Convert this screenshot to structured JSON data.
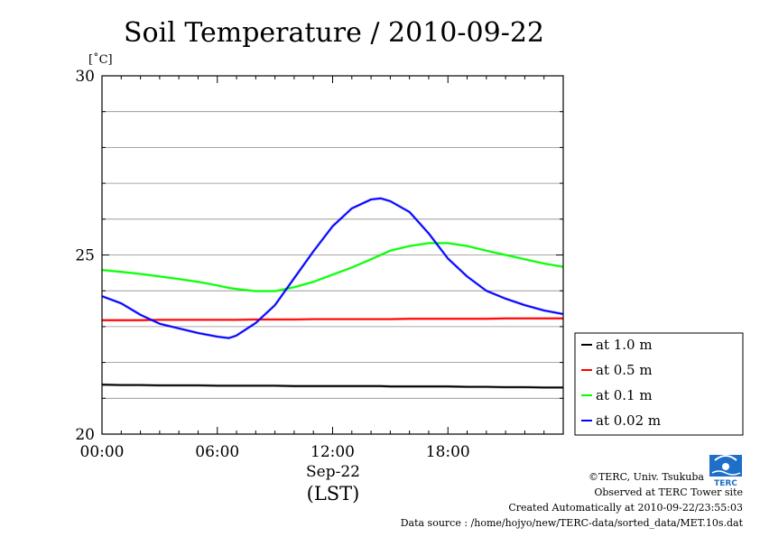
{
  "chart_data": {
    "type": "line",
    "title": "Soil Temperature / 2010-09-22",
    "ylabel": "[˚C]",
    "xlabel": "(LST)",
    "x_sublabel": "Sep-22",
    "ylim": [
      20,
      30
    ],
    "xlim": [
      0,
      24
    ],
    "y_ticks": [
      20,
      25,
      30
    ],
    "x_ticks": [
      {
        "v": 0,
        "label": "00:00"
      },
      {
        "v": 6,
        "label": "06:00"
      },
      {
        "v": 12,
        "label": "12:00"
      },
      {
        "v": 18,
        "label": "18:00"
      }
    ],
    "grid": true,
    "legend_position": "right",
    "x": [
      0,
      1,
      2,
      3,
      4,
      5,
      6,
      6.6,
      7,
      8,
      9,
      10,
      11,
      12,
      13,
      14,
      14.5,
      15,
      16,
      17,
      18,
      19,
      20,
      21,
      22,
      23,
      24
    ],
    "series": [
      {
        "name": "at 1.0 m",
        "color": "#000000",
        "values": [
          21.38,
          21.37,
          21.37,
          21.36,
          21.36,
          21.36,
          21.35,
          21.35,
          21.35,
          21.35,
          21.35,
          21.34,
          21.34,
          21.34,
          21.34,
          21.34,
          21.34,
          21.33,
          21.33,
          21.33,
          21.33,
          21.32,
          21.32,
          21.31,
          21.31,
          21.3,
          21.3
        ]
      },
      {
        "name": "at 0.5 m",
        "color": "#ff0000",
        "values": [
          23.18,
          23.18,
          23.18,
          23.19,
          23.19,
          23.19,
          23.19,
          23.19,
          23.19,
          23.2,
          23.2,
          23.2,
          23.21,
          23.21,
          23.21,
          23.21,
          23.21,
          23.21,
          23.22,
          23.22,
          23.22,
          23.22,
          23.22,
          23.23,
          23.23,
          23.23,
          23.23
        ]
      },
      {
        "name": "at 0.1 m",
        "color": "#00ff00",
        "values": [
          24.58,
          24.53,
          24.47,
          24.4,
          24.33,
          24.25,
          24.15,
          24.08,
          24.05,
          23.99,
          23.99,
          24.1,
          24.25,
          24.45,
          24.65,
          24.88,
          25.0,
          25.12,
          25.25,
          25.33,
          25.33,
          25.25,
          25.12,
          25.0,
          24.88,
          24.76,
          24.67
        ]
      },
      {
        "name": "at 0.02 m",
        "color": "#0000ff",
        "values": [
          23.85,
          23.65,
          23.33,
          23.08,
          22.95,
          22.82,
          22.72,
          22.68,
          22.75,
          23.1,
          23.6,
          24.35,
          25.1,
          25.8,
          26.3,
          26.55,
          26.58,
          26.5,
          26.2,
          25.6,
          24.9,
          24.4,
          24.0,
          23.78,
          23.6,
          23.45,
          23.35
        ]
      }
    ]
  },
  "credits": {
    "copyright": "©TERC, Univ. Tsukuba",
    "observed": "Observed at TERC Tower site",
    "created": "Created Automatically at 2010-09-22/23:55:03",
    "source": "Data source : /home/hojyo/new/TERC-data/sorted_data/MET.10s.dat"
  },
  "logo": {
    "text": "TERC",
    "color": "#1e6fc8"
  }
}
